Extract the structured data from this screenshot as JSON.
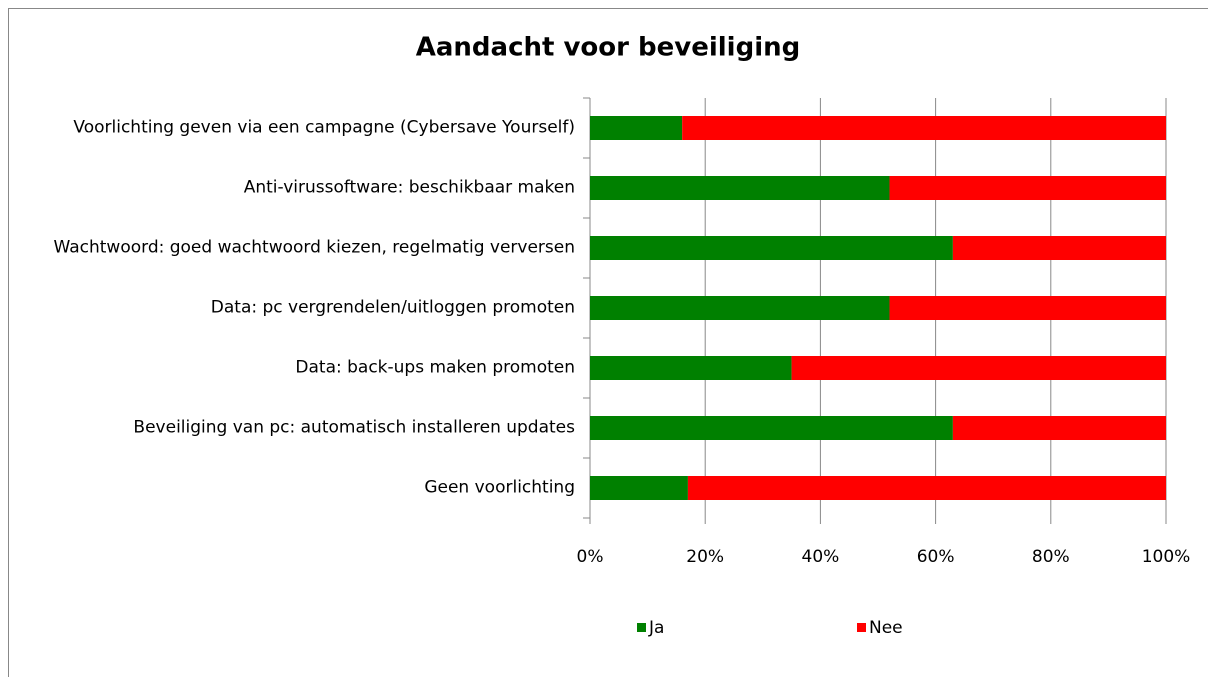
{
  "chart_data": {
    "type": "stacked-bar-horizontal",
    "title": "Aandacht voor beveiliging",
    "categories": [
      "Voorlichting geven via een campagne (Cybersave Yourself)",
      "Anti-virussoftware: beschikbaar maken",
      "Wachtwoord: goed wachtwoord kiezen, regelmatig verversen",
      "Data: pc vergrendelen/uitloggen  promoten",
      "Data: back-ups maken promoten",
      "Beveiliging van pc: automatisch installeren updates",
      "Geen voorlichting"
    ],
    "series": [
      {
        "name": "Ja",
        "color": "#008000",
        "values": [
          16,
          52,
          63,
          52,
          35,
          63,
          17
        ]
      },
      {
        "name": "Nee",
        "color": "#ff0000",
        "values": [
          84,
          48,
          37,
          48,
          65,
          37,
          83
        ]
      }
    ],
    "xlim": [
      0,
      100
    ],
    "xticks": [
      {
        "value": 0,
        "label": "0%"
      },
      {
        "value": 20,
        "label": "20%"
      },
      {
        "value": 40,
        "label": "40%"
      },
      {
        "value": 60,
        "label": "60%"
      },
      {
        "value": 80,
        "label": "80%"
      },
      {
        "value": 100,
        "label": "100%"
      }
    ],
    "grid": true,
    "legend": "bottom"
  }
}
